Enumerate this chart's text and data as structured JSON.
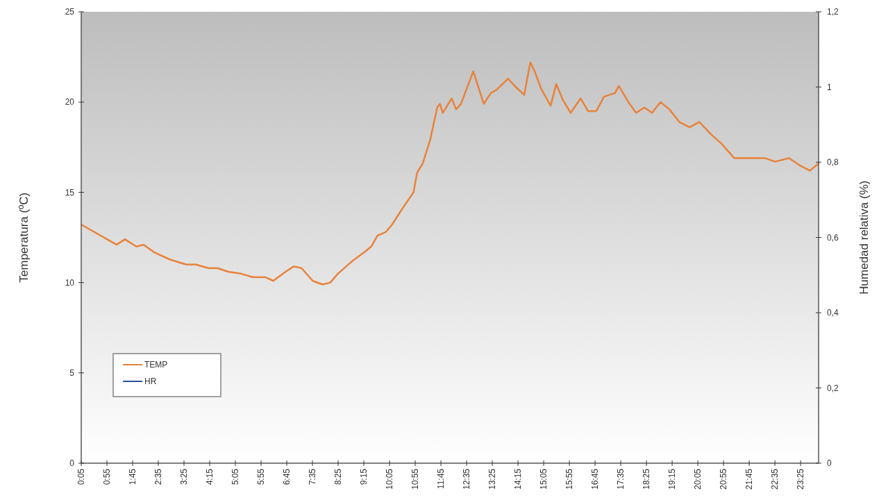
{
  "chart_data": {
    "type": "line",
    "xlabel": null,
    "ylabel": "Temperatura (ºC)",
    "y2label": "Humedad relativa (%)",
    "xlim": [
      0.0833,
      24.0
    ],
    "xticks": [
      {
        "value": 0.0833,
        "label": "0:05"
      },
      {
        "value": 0.9167,
        "label": "0:55"
      },
      {
        "value": 1.75,
        "label": "1:45"
      },
      {
        "value": 2.5833,
        "label": "2:35"
      },
      {
        "value": 3.4167,
        "label": "3:25"
      },
      {
        "value": 4.25,
        "label": "4:15"
      },
      {
        "value": 5.0833,
        "label": "5:05"
      },
      {
        "value": 5.9167,
        "label": "5:55"
      },
      {
        "value": 6.75,
        "label": "6:45"
      },
      {
        "value": 7.5833,
        "label": "7:35"
      },
      {
        "value": 8.4167,
        "label": "8:25"
      },
      {
        "value": 9.25,
        "label": "9:15"
      },
      {
        "value": 10.0833,
        "label": "10:05"
      },
      {
        "value": 10.9167,
        "label": "10:55"
      },
      {
        "value": 11.75,
        "label": "11:45"
      },
      {
        "value": 12.5833,
        "label": "12:35"
      },
      {
        "value": 13.4167,
        "label": "13:25"
      },
      {
        "value": 14.25,
        "label": "14:15"
      },
      {
        "value": 15.0833,
        "label": "15:05"
      },
      {
        "value": 15.9167,
        "label": "15:55"
      },
      {
        "value": 16.75,
        "label": "16:45"
      },
      {
        "value": 17.5833,
        "label": "17:35"
      },
      {
        "value": 18.4167,
        "label": "18:25"
      },
      {
        "value": 19.25,
        "label": "19:15"
      },
      {
        "value": 20.0833,
        "label": "20:05"
      },
      {
        "value": 20.9167,
        "label": "20:55"
      },
      {
        "value": 21.75,
        "label": "21:45"
      },
      {
        "value": 22.5833,
        "label": "22:35"
      },
      {
        "value": 23.4167,
        "label": "23:25"
      }
    ],
    "ylim": [
      0,
      25
    ],
    "yticks": [
      0,
      5,
      10,
      15,
      20,
      25
    ],
    "y2lim": [
      0,
      1.2
    ],
    "y2ticks": [
      0,
      {
        "value": 0.2,
        "label": "0,2"
      },
      {
        "value": 0.4,
        "label": "0,4"
      },
      {
        "value": 0.6,
        "label": "0,6"
      },
      {
        "value": 0.8,
        "label": "0,8"
      },
      1,
      {
        "value": 1.2,
        "label": "1,2"
      }
    ],
    "grid": false,
    "legend": "bottom left",
    "line_style": "solid",
    "series": [
      {
        "name": "TEMP",
        "color": "#e8823a",
        "x": [
          0.1,
          1.23,
          1.5,
          1.87,
          2.11,
          2.43,
          2.93,
          3.49,
          3.8,
          4.21,
          4.5,
          4.86,
          5.25,
          5.65,
          6.06,
          6.31,
          6.71,
          6.98,
          7.23,
          7.59,
          7.91,
          8.16,
          8.41,
          8.88,
          9.28,
          9.49,
          9.69,
          9.96,
          10.16,
          10.5,
          10.86,
          10.98,
          11.16,
          11.4,
          11.63,
          11.72,
          11.81,
          12.1,
          12.24,
          12.4,
          12.8,
          13.14,
          13.37,
          13.57,
          13.93,
          14.14,
          14.45,
          14.65,
          14.79,
          15.01,
          15.31,
          15.49,
          15.71,
          15.96,
          16.28,
          16.52,
          16.79,
          17.04,
          17.4,
          17.52,
          17.83,
          18.08,
          18.35,
          18.6,
          18.87,
          19.16,
          19.48,
          19.82,
          20.13,
          20.52,
          20.85,
          21.26,
          21.46,
          22.25,
          22.59,
          23.04,
          23.38,
          23.72,
          24.0
        ],
        "values": [
          13.2,
          12.1,
          12.4,
          12.0,
          12.1,
          11.7,
          11.3,
          11.0,
          11.0,
          10.8,
          10.8,
          10.6,
          10.5,
          10.3,
          10.3,
          10.1,
          10.6,
          10.9,
          10.8,
          10.1,
          9.9,
          10.0,
          10.5,
          11.2,
          11.7,
          12.0,
          12.6,
          12.8,
          13.2,
          14.1,
          15.0,
          16.1,
          16.6,
          17.9,
          19.7,
          19.9,
          19.4,
          20.2,
          19.6,
          19.9,
          21.7,
          19.9,
          20.5,
          20.7,
          21.3,
          20.9,
          20.4,
          22.2,
          21.7,
          20.7,
          19.8,
          21.0,
          20.1,
          19.4,
          20.2,
          19.5,
          19.5,
          20.3,
          20.5,
          20.9,
          20.0,
          19.4,
          19.7,
          19.4,
          20.0,
          19.6,
          18.9,
          18.6,
          18.9,
          18.2,
          17.7,
          16.9,
          16.9,
          16.9,
          16.7,
          16.9,
          16.5,
          16.2,
          16.6
        ]
      },
      {
        "name": "HR",
        "color": "#2b4f9e"
      }
    ]
  }
}
